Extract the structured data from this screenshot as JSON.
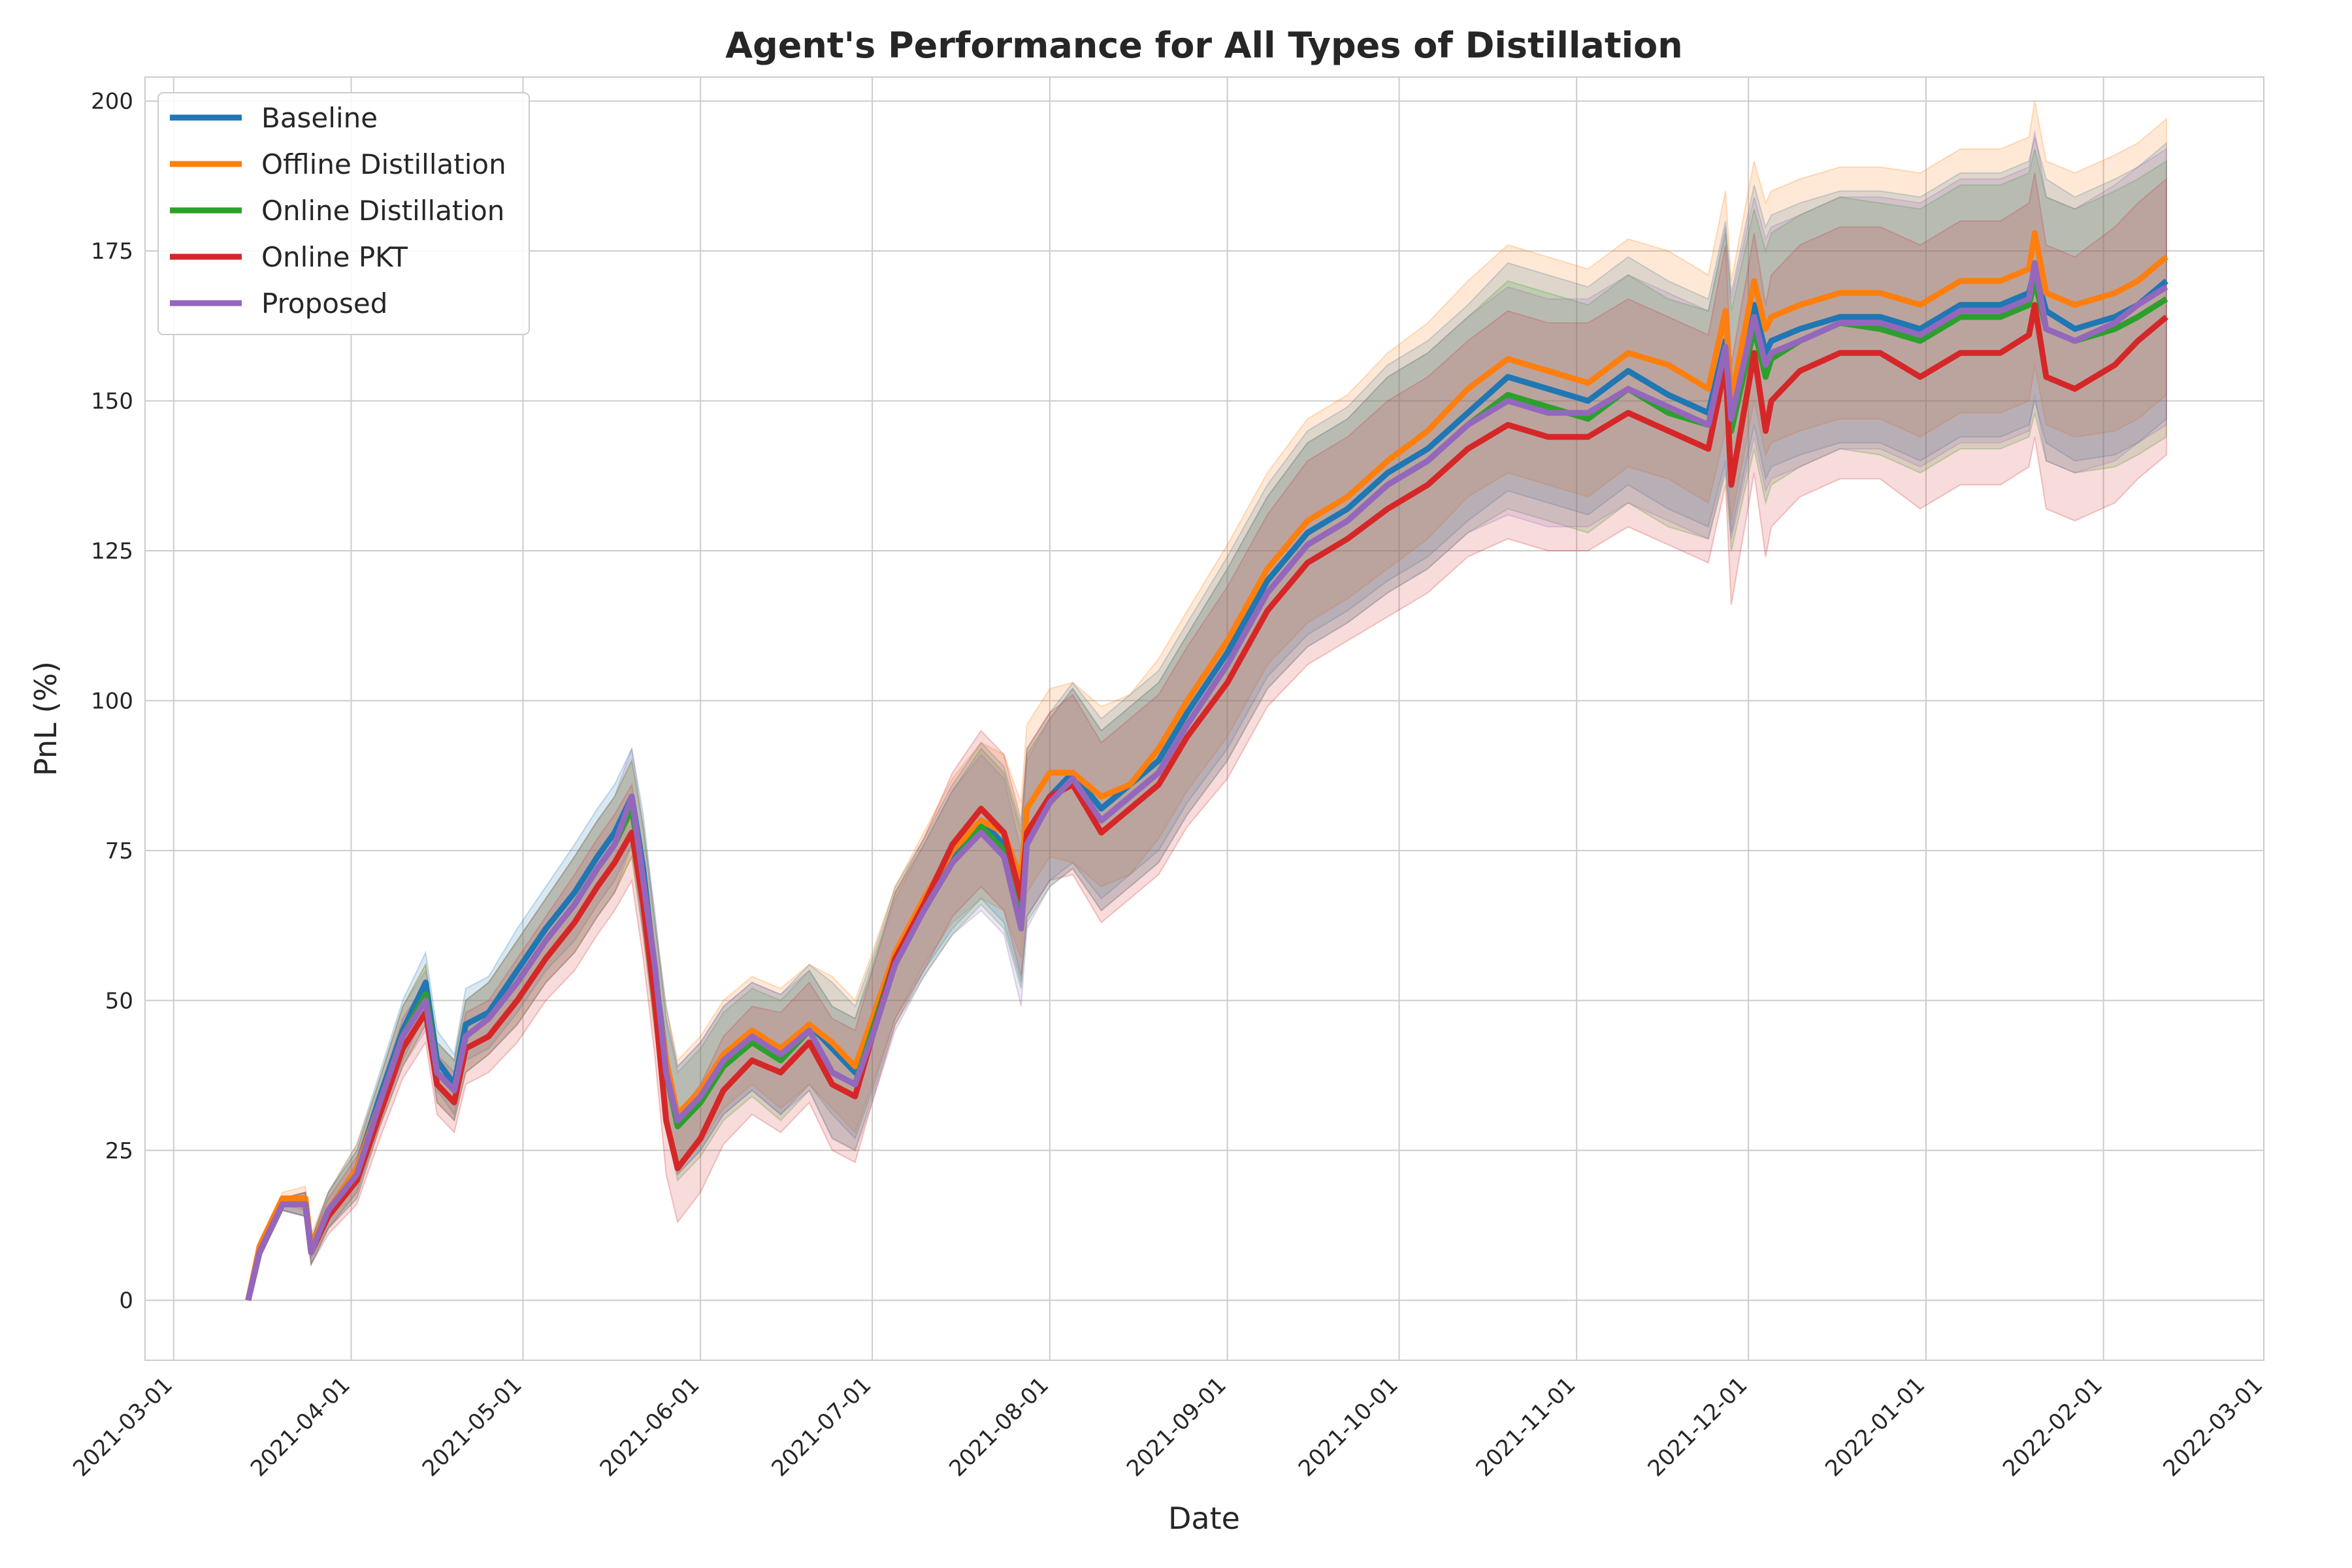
{
  "chart_data": {
    "type": "line",
    "title": "Agent's Performance for All Types of Distillation",
    "xlabel": "Date",
    "ylabel": "PnL (%)",
    "xlim": [
      "2021-02-24",
      "2022-03-01"
    ],
    "ylim": [
      -10,
      204
    ],
    "x_ticks": [
      "2021-03-01",
      "2021-04-01",
      "2021-05-01",
      "2021-06-01",
      "2021-07-01",
      "2021-08-01",
      "2021-09-01",
      "2021-10-01",
      "2021-11-01",
      "2021-12-01",
      "2022-01-01",
      "2022-02-01",
      "2022-03-01"
    ],
    "y_ticks": [
      0,
      25,
      50,
      75,
      100,
      125,
      150,
      175,
      200
    ],
    "grid": true,
    "legend_position": "top-left",
    "x": [
      "2021-03-14",
      "2021-03-16",
      "2021-03-20",
      "2021-03-24",
      "2021-03-25",
      "2021-03-28",
      "2021-04-02",
      "2021-04-06",
      "2021-04-10",
      "2021-04-14",
      "2021-04-16",
      "2021-04-19",
      "2021-04-21",
      "2021-04-25",
      "2021-04-30",
      "2021-05-05",
      "2021-05-10",
      "2021-05-14",
      "2021-05-17",
      "2021-05-20",
      "2021-05-22",
      "2021-05-24",
      "2021-05-26",
      "2021-05-28",
      "2021-06-01",
      "2021-06-05",
      "2021-06-10",
      "2021-06-15",
      "2021-06-20",
      "2021-06-24",
      "2021-06-28",
      "2021-07-01",
      "2021-07-05",
      "2021-07-10",
      "2021-07-15",
      "2021-07-20",
      "2021-07-24",
      "2021-07-27",
      "2021-07-28",
      "2021-08-01",
      "2021-08-05",
      "2021-08-10",
      "2021-08-15",
      "2021-08-20",
      "2021-08-25",
      "2021-09-01",
      "2021-09-08",
      "2021-09-15",
      "2021-09-22",
      "2021-09-29",
      "2021-10-06",
      "2021-10-13",
      "2021-10-20",
      "2021-10-27",
      "2021-11-03",
      "2021-11-10",
      "2021-11-17",
      "2021-11-24",
      "2021-11-27",
      "2021-11-28",
      "2021-12-02",
      "2021-12-04",
      "2021-12-05",
      "2021-12-10",
      "2021-12-17",
      "2021-12-24",
      "2021-12-31",
      "2022-01-07",
      "2022-01-14",
      "2022-01-19",
      "2022-01-20",
      "2022-01-22",
      "2022-01-27",
      "2022-02-03",
      "2022-02-07",
      "2022-02-12"
    ],
    "series": [
      {
        "name": "Baseline",
        "color": "#1f77b4",
        "values": [
          0,
          8,
          16,
          16,
          8,
          15,
          22,
          34,
          45,
          53,
          40,
          36,
          46,
          48,
          55,
          62,
          68,
          74,
          78,
          84,
          72,
          55,
          40,
          30,
          34,
          40,
          44,
          41,
          46,
          42,
          38,
          46,
          58,
          66,
          74,
          80,
          76,
          66,
          78,
          84,
          88,
          82,
          86,
          90,
          98,
          108,
          120,
          128,
          132,
          138,
          142,
          148,
          154,
          152,
          150,
          155,
          151,
          148,
          160,
          148,
          166,
          158,
          160,
          162,
          164,
          164,
          162,
          166,
          166,
          168,
          172,
          165,
          162,
          164,
          166,
          170
        ],
        "band": [
          0,
          1,
          1,
          2,
          2,
          3,
          4,
          4,
          5,
          5,
          5,
          5,
          6,
          6,
          7,
          7,
          8,
          8,
          8,
          8,
          9,
          9,
          9,
          9,
          9,
          9,
          9,
          10,
          10,
          11,
          11,
          11,
          11,
          11,
          12,
          13,
          13,
          13,
          14,
          14,
          15,
          15,
          15,
          15,
          15,
          16,
          16,
          17,
          17,
          18,
          18,
          18,
          19,
          19,
          19,
          19,
          19,
          19,
          20,
          20,
          20,
          21,
          21,
          21,
          21,
          21,
          22,
          22,
          22,
          22,
          22,
          22,
          22,
          23,
          23,
          23
        ]
      },
      {
        "name": "Offline Distillation",
        "color": "#ff7f0e",
        "values": [
          0,
          9,
          17,
          17,
          9,
          15,
          22,
          33,
          44,
          51,
          38,
          35,
          44,
          47,
          53,
          60,
          66,
          72,
          76,
          82,
          70,
          54,
          40,
          31,
          35,
          41,
          45,
          42,
          46,
          43,
          39,
          47,
          58,
          67,
          75,
          80,
          78,
          70,
          82,
          88,
          88,
          84,
          86,
          92,
          100,
          110,
          122,
          130,
          134,
          140,
          145,
          152,
          157,
          155,
          153,
          158,
          156,
          152,
          165,
          150,
          170,
          162,
          164,
          166,
          168,
          168,
          166,
          170,
          170,
          172,
          178,
          168,
          166,
          168,
          170,
          174
        ],
        "band": [
          0,
          1,
          1,
          2,
          2,
          3,
          4,
          4,
          5,
          5,
          5,
          5,
          6,
          6,
          7,
          7,
          8,
          8,
          8,
          8,
          9,
          9,
          9,
          9,
          9,
          9,
          9,
          10,
          10,
          11,
          11,
          11,
          11,
          11,
          12,
          13,
          13,
          13,
          14,
          14,
          15,
          15,
          15,
          15,
          15,
          16,
          16,
          17,
          17,
          18,
          18,
          18,
          19,
          19,
          19,
          19,
          19,
          19,
          20,
          20,
          20,
          21,
          21,
          21,
          21,
          21,
          22,
          22,
          22,
          22,
          22,
          22,
          22,
          23,
          23,
          23
        ]
      },
      {
        "name": "Online Distillation",
        "color": "#2ca02c",
        "values": [
          0,
          8,
          16,
          16,
          8,
          15,
          21,
          33,
          44,
          51,
          38,
          35,
          44,
          47,
          53,
          60,
          66,
          72,
          76,
          82,
          70,
          54,
          38,
          29,
          33,
          39,
          43,
          40,
          45,
          38,
          36,
          45,
          57,
          65,
          73,
          79,
          75,
          65,
          77,
          83,
          87,
          80,
          84,
          88,
          96,
          106,
          118,
          126,
          130,
          136,
          140,
          146,
          151,
          149,
          147,
          152,
          148,
          146,
          158,
          145,
          162,
          154,
          157,
          160,
          163,
          162,
          160,
          164,
          164,
          166,
          170,
          162,
          160,
          162,
          164,
          167
        ],
        "band": [
          0,
          1,
          1,
          2,
          2,
          3,
          4,
          4,
          5,
          5,
          5,
          5,
          6,
          6,
          7,
          7,
          8,
          8,
          8,
          8,
          9,
          9,
          9,
          9,
          9,
          9,
          9,
          10,
          10,
          11,
          11,
          11,
          11,
          11,
          12,
          13,
          13,
          13,
          14,
          14,
          15,
          15,
          15,
          15,
          15,
          16,
          16,
          17,
          17,
          18,
          18,
          18,
          19,
          19,
          19,
          19,
          19,
          19,
          20,
          20,
          20,
          21,
          21,
          21,
          21,
          21,
          22,
          22,
          22,
          22,
          22,
          22,
          22,
          23,
          23,
          23
        ]
      },
      {
        "name": "Online PKT",
        "color": "#d62728",
        "values": [
          0,
          8,
          16,
          16,
          8,
          14,
          20,
          31,
          42,
          48,
          36,
          33,
          42,
          44,
          50,
          57,
          63,
          69,
          73,
          78,
          66,
          50,
          30,
          22,
          27,
          35,
          40,
          38,
          43,
          36,
          34,
          44,
          57,
          66,
          76,
          82,
          78,
          67,
          78,
          84,
          86,
          78,
          82,
          86,
          94,
          103,
          115,
          123,
          127,
          132,
          136,
          142,
          146,
          144,
          144,
          148,
          145,
          142,
          156,
          136,
          158,
          145,
          150,
          155,
          158,
          158,
          154,
          158,
          158,
          161,
          166,
          154,
          152,
          156,
          160,
          164
        ],
        "band": [
          0,
          1,
          1,
          2,
          2,
          3,
          4,
          4,
          5,
          5,
          5,
          5,
          6,
          6,
          7,
          7,
          8,
          8,
          8,
          8,
          9,
          9,
          9,
          9,
          9,
          9,
          9,
          10,
          10,
          11,
          11,
          11,
          11,
          11,
          12,
          13,
          13,
          13,
          14,
          14,
          15,
          15,
          15,
          15,
          15,
          16,
          16,
          17,
          17,
          18,
          18,
          18,
          19,
          19,
          19,
          19,
          19,
          19,
          20,
          20,
          20,
          21,
          21,
          21,
          21,
          21,
          22,
          22,
          22,
          22,
          22,
          22,
          22,
          23,
          23,
          23
        ]
      },
      {
        "name": "Proposed",
        "color": "#9467bd",
        "values": [
          0,
          8,
          16,
          16,
          8,
          15,
          21,
          33,
          44,
          50,
          38,
          35,
          44,
          47,
          53,
          60,
          66,
          72,
          76,
          84,
          70,
          56,
          38,
          30,
          34,
          40,
          44,
          41,
          45,
          38,
          36,
          44,
          56,
          65,
          73,
          78,
          74,
          62,
          76,
          83,
          87,
          80,
          84,
          88,
          96,
          106,
          118,
          126,
          130,
          136,
          140,
          146,
          150,
          148,
          148,
          152,
          149,
          146,
          159,
          147,
          164,
          156,
          158,
          160,
          163,
          163,
          161,
          165,
          165,
          167,
          173,
          162,
          160,
          163,
          166,
          169
        ],
        "band": [
          0,
          1,
          1,
          2,
          2,
          3,
          4,
          4,
          5,
          5,
          5,
          5,
          6,
          6,
          7,
          7,
          8,
          8,
          8,
          8,
          9,
          9,
          9,
          9,
          9,
          9,
          9,
          10,
          10,
          11,
          11,
          11,
          11,
          11,
          12,
          13,
          13,
          13,
          14,
          14,
          15,
          15,
          15,
          15,
          15,
          16,
          16,
          17,
          17,
          18,
          18,
          18,
          19,
          19,
          19,
          19,
          19,
          19,
          20,
          20,
          20,
          21,
          21,
          21,
          21,
          21,
          22,
          22,
          22,
          22,
          22,
          22,
          22,
          23,
          23,
          23
        ]
      }
    ]
  }
}
